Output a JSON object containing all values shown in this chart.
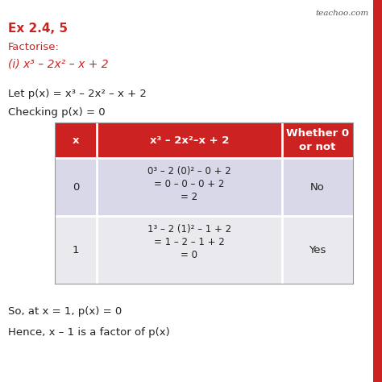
{
  "title": "Ex 2.4, 5",
  "subtitle": "Factorise:",
  "problem": "(i) x³ – 2x² – x + 2",
  "let_line": "Let p(x) = x³ – 2x² – x + 2",
  "checking_line": "Checking p(x) = 0",
  "col1_header": "x",
  "col2_header": "x³ – 2x²–x + 2",
  "col3_header": "Whether 0\nor not",
  "row0_x": "0",
  "row0_calc_line1": "0³ – 2 (0)² – 0 + 2",
  "row0_calc_line2": "= 0 – 0 – 0 + 2",
  "row0_calc_line3": "= 2",
  "row0_result": "No",
  "row1_x": "1",
  "row1_calc_line1": "1³ – 2 (1)² – 1 + 2",
  "row1_calc_line2": "= 1 – 2 – 1 + 2",
  "row1_calc_line3": "= 0",
  "row1_result": "Yes",
  "conclusion1": "So, at x = 1, p(x) = 0",
  "conclusion2": "Hence, x – 1 is a factor of p(x)",
  "header_bg": "#cc2222",
  "header_text_color": "#ffffff",
  "row_bg_even": "#d8d8e8",
  "row_bg_odd": "#eaeaee",
  "title_color": "#cc2222",
  "subtitle_color": "#cc2222",
  "problem_color": "#cc2222",
  "body_color": "#222222",
  "watermark": "teachoo.com",
  "watermark_color": "#555555",
  "right_bar_color": "#cc2222",
  "background_color": "#ffffff"
}
